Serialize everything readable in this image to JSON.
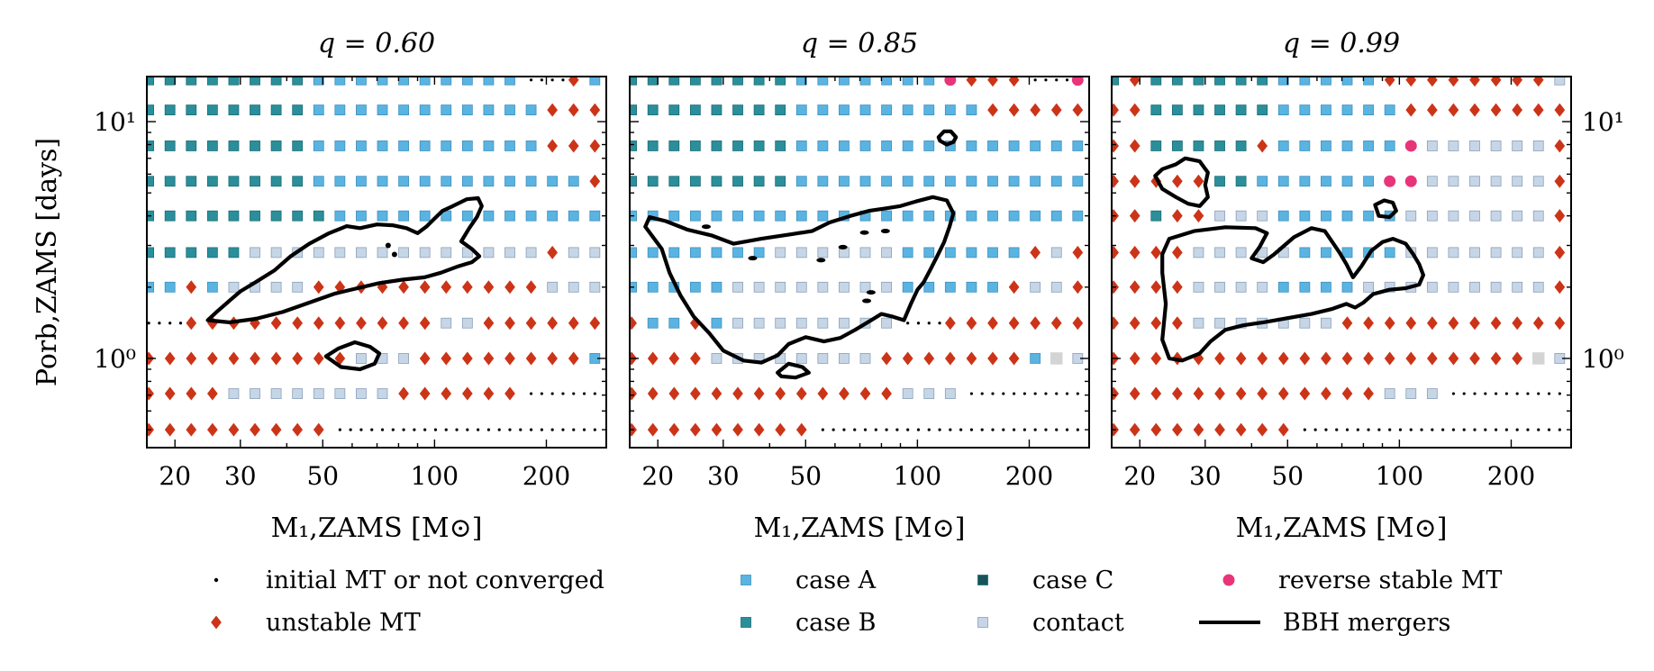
{
  "chart_data": {
    "type": "scatter",
    "colors": {
      "caseA": "#5ab4e1",
      "caseB": "#2a8f9b",
      "caseC": "#17545a",
      "contact": "#c6d6e7",
      "unstable": "#cc3418",
      "reverse": "#e8357a",
      "initial": "#000000",
      "contour": "#000000"
    },
    "xlabel": "M₁,ZAMS [M⊙]",
    "ylabel": "Porb,ZAMS [days]",
    "xlim": [
      16.8,
      290
    ],
    "ylim": [
      0.42,
      15.5
    ],
    "xscale": "log",
    "yscale": "log",
    "xticks": [
      20,
      30,
      50,
      100,
      200
    ],
    "xtick_labels": [
      "20",
      "30",
      "50",
      "100",
      "200"
    ],
    "yticks": [
      1,
      10
    ],
    "ytick_labels": [
      "10⁰",
      "10¹"
    ],
    "legend": {
      "entries": [
        {
          "key": "initial",
          "marker": "dot",
          "label": "initial MT or not converged"
        },
        {
          "key": "unstable",
          "marker": "diamond",
          "label": "unstable MT"
        },
        {
          "key": "caseA",
          "marker": "square",
          "label": "case A"
        },
        {
          "key": "caseB",
          "marker": "square",
          "label": "case B"
        },
        {
          "key": "caseC",
          "marker": "square",
          "label": "case C"
        },
        {
          "key": "contact",
          "marker": "square",
          "label": "contact"
        },
        {
          "key": "reverse",
          "marker": "circle",
          "label": "reverse stable MT"
        },
        {
          "key": "bbh",
          "marker": "line",
          "label": "BBH mergers"
        }
      ]
    },
    "panels": [
      {
        "title": "q = 0.60",
        "rows": [
          {
            "P": 0.5,
            "cells": "UUUUUUUUUIIIIIIIIIIIII"
          },
          {
            "P": 0.71,
            "cells": "UUUUTTTTTTTTUUUUUUIIII"
          },
          {
            "P": 1.0,
            "cells": "UUUUUUUUUUTTTUUUUUUUUA"
          },
          {
            "P": 1.41,
            "cells": "IIUUUUUUUUUUUUTTUUUUUU"
          },
          {
            "P": 2.0,
            "cells": "AAUATTTTUUUUUUUUUUUTTT"
          },
          {
            "P": 2.8,
            "cells": "BBBBBTTTTTTTTTTTTTTUTT"
          },
          {
            "P": 4.0,
            "cells": "BBBBBBBBBAAAAAAAAAAAAA"
          },
          {
            "P": 5.6,
            "cells": "BBBBBBBBAAAAAAAAAAAAAU"
          },
          {
            "P": 7.9,
            "cells": "BBBBBBBBAAAAAAAAAAAUUU"
          },
          {
            "P": 11.2,
            "cells": "BBBBBBBBAAAAAAAAAAAUUU"
          },
          {
            "P": 15.0,
            "cells": "BBBBBBBBAAAAAAAAAAIIUA"
          }
        ],
        "bbh_contours": [
          [
            [
              24.5,
              1.45
            ],
            [
              26,
              1.58
            ],
            [
              28,
              1.75
            ],
            [
              30,
              1.92
            ],
            [
              33,
              2.1
            ],
            [
              37,
              2.35
            ],
            [
              41,
              2.7
            ],
            [
              46,
              3.05
            ],
            [
              52,
              3.38
            ],
            [
              58,
              3.62
            ],
            [
              63,
              3.55
            ],
            [
              70,
              3.68
            ],
            [
              77,
              3.65
            ],
            [
              84,
              3.55
            ],
            [
              90,
              3.38
            ],
            [
              95,
              3.6
            ],
            [
              100,
              3.9
            ],
            [
              105,
              4.2
            ],
            [
              112,
              4.4
            ],
            [
              122,
              4.7
            ],
            [
              131,
              4.75
            ],
            [
              134,
              4.4
            ],
            [
              130,
              3.95
            ],
            [
              124,
              3.55
            ],
            [
              118,
              3.12
            ],
            [
              126,
              2.9
            ],
            [
              132,
              2.7
            ],
            [
              126,
              2.55
            ],
            [
              116,
              2.45
            ],
            [
              104,
              2.3
            ],
            [
              94,
              2.2
            ],
            [
              82,
              2.15
            ],
            [
              71,
              2.08
            ],
            [
              62,
              1.98
            ],
            [
              54,
              1.88
            ],
            [
              46,
              1.72
            ],
            [
              39,
              1.57
            ],
            [
              33,
              1.47
            ],
            [
              28,
              1.42
            ],
            [
              24.5,
              1.45
            ]
          ],
          [
            [
              51,
              1.02
            ],
            [
              55,
              1.1
            ],
            [
              61,
              1.17
            ],
            [
              67,
              1.12
            ],
            [
              71,
              1.05
            ],
            [
              69,
              0.95
            ],
            [
              63,
              0.9
            ],
            [
              56,
              0.92
            ],
            [
              51,
              1.02
            ]
          ]
        ]
      },
      {
        "title": "q = 0.85",
        "rows": [
          {
            "P": 0.5,
            "cells": "UUUUUUUUUIIIIIIIIIIIII"
          },
          {
            "P": 0.71,
            "cells": "UUUUUUUUUUUUUTTTIIIIII"
          },
          {
            "P": 1.0,
            "cells": "UUUUTTTTTTTTUUUUUUUAGT"
          },
          {
            "P": 1.41,
            "cells": "UAAUATTTTTTTTIIUUUUUUU"
          },
          {
            "P": 2.0,
            "cells": "AAAAATTTTTTTTAAAAAUTTU"
          },
          {
            "P": 2.8,
            "cells": "AAAAAAATTTTTTAAAAAAUTU"
          },
          {
            "P": 4.0,
            "cells": "AAAAAAAAAAAAAAAAAAAAAA"
          },
          {
            "P": 5.6,
            "cells": "BBBBBBBBAAAAAAAAAAAAAA"
          },
          {
            "P": 7.9,
            "cells": "BBBBBBBBAAAAAAAAAAAAAA"
          },
          {
            "P": 11.2,
            "cells": "BBBBBBBBAAAAAAAAAUUUUU"
          },
          {
            "P": 15.0,
            "cells": "BBBBBBBBAAAAAAAPUUUIIP"
          }
        ],
        "bbh_contours": [
          [
            [
              19,
              3.95
            ],
            [
              18.5,
              3.6
            ],
            [
              20.5,
              2.9
            ],
            [
              21.5,
              2.3
            ],
            [
              23,
              1.85
            ],
            [
              25,
              1.5
            ],
            [
              27.5,
              1.28
            ],
            [
              30,
              1.08
            ],
            [
              34,
              0.98
            ],
            [
              38,
              0.96
            ],
            [
              42,
              1.03
            ],
            [
              45,
              1.15
            ],
            [
              50,
              1.23
            ],
            [
              56,
              1.18
            ],
            [
              62,
              1.22
            ],
            [
              68,
              1.32
            ],
            [
              74,
              1.43
            ],
            [
              80,
              1.54
            ],
            [
              86,
              1.5
            ],
            [
              92,
              1.45
            ],
            [
              96,
              1.7
            ],
            [
              100,
              1.95
            ],
            [
              104,
              2.1
            ],
            [
              108,
              2.35
            ],
            [
              113,
              2.7
            ],
            [
              118,
              3.1
            ],
            [
              122,
              3.6
            ],
            [
              125,
              4.1
            ],
            [
              120,
              4.65
            ],
            [
              110,
              4.8
            ],
            [
              99,
              4.6
            ],
            [
              90,
              4.4
            ],
            [
              82,
              4.3
            ],
            [
              74,
              4.2
            ],
            [
              66,
              4.0
            ],
            [
              58,
              3.75
            ],
            [
              52,
              3.45
            ],
            [
              46,
              3.35
            ],
            [
              38,
              3.2
            ],
            [
              32,
              3.05
            ],
            [
              28,
              3.3
            ],
            [
              24,
              3.5
            ],
            [
              21,
              3.8
            ],
            [
              19,
              3.95
            ]
          ],
          [
            [
              114,
              8.6
            ],
            [
              118,
              9.1
            ],
            [
              123,
              9.1
            ],
            [
              127,
              8.6
            ],
            [
              125,
              8.2
            ],
            [
              120,
              8.0
            ],
            [
              115,
              8.3
            ],
            [
              114,
              8.6
            ]
          ],
          [
            [
              42,
              0.87
            ],
            [
              45,
              0.95
            ],
            [
              49,
              0.92
            ],
            [
              51,
              0.87
            ],
            [
              47,
              0.83
            ],
            [
              43,
              0.84
            ],
            [
              42,
              0.87
            ]
          ]
        ]
      },
      {
        "title": "q = 0.99",
        "rows": [
          {
            "P": 0.5,
            "cells": "UUUUUUUUUIIIIIIIIIIIII"
          },
          {
            "P": 0.71,
            "cells": "UUUUUUUUUUUUUTTTIIIIII"
          },
          {
            "P": 1.0,
            "cells": "UUUUUUUUUUUUUUUUUUUUGT"
          },
          {
            "P": 1.41,
            "cells": "UUUUTTTTTTTUUUUUUUUUUU"
          },
          {
            "P": 2.0,
            "cells": "UUUUTTTTAAAATTTTTTTTTU"
          },
          {
            "P": 2.8,
            "cells": "UUUUTTTTTAAAAATTTTTTTU"
          },
          {
            "P": 4.0,
            "cells": "UUBUUTTTAAAAAATTTTTTTU"
          },
          {
            "P": 5.6,
            "cells": "UUUUUBBAAAAAAPPTTTTTTU"
          },
          {
            "P": 7.9,
            "cells": "UUBBBBBUAAAAAAPTTTTTTU"
          },
          {
            "P": 11.2,
            "cells": "UUBBBBBBAAAAAAUUUUUUUU"
          },
          {
            "P": 15.0,
            "cells": "BUBBBBBBAAAAAUUUUUUUUT"
          }
        ],
        "bbh_contours": [
          [
            [
              25,
              6.6
            ],
            [
              26.5,
              7.0
            ],
            [
              29,
              6.8
            ],
            [
              30.5,
              6.1
            ],
            [
              30,
              5.4
            ],
            [
              30.5,
              4.8
            ],
            [
              29,
              4.4
            ],
            [
              27,
              4.5
            ],
            [
              25,
              4.8
            ],
            [
              23,
              5.2
            ],
            [
              22,
              5.9
            ],
            [
              23,
              6.3
            ],
            [
              25,
              6.6
            ]
          ],
          [
            [
              24,
              3.2
            ],
            [
              28,
              3.45
            ],
            [
              34,
              3.58
            ],
            [
              41,
              3.55
            ],
            [
              44,
              3.38
            ],
            [
              42,
              2.95
            ],
            [
              40,
              2.65
            ],
            [
              43,
              2.55
            ],
            [
              46,
              2.75
            ],
            [
              52,
              3.25
            ],
            [
              58,
              3.55
            ],
            [
              63,
              3.45
            ],
            [
              66,
              3.1
            ],
            [
              69,
              2.8
            ],
            [
              72,
              2.5
            ],
            [
              75,
              2.2
            ],
            [
              79,
              2.45
            ],
            [
              84,
              2.85
            ],
            [
              90,
              3.1
            ],
            [
              96,
              3.2
            ],
            [
              104,
              3.05
            ],
            [
              109,
              2.75
            ],
            [
              113,
              2.5
            ],
            [
              116,
              2.25
            ],
            [
              113,
              2.05
            ],
            [
              104,
              1.98
            ],
            [
              94,
              1.95
            ],
            [
              85,
              1.87
            ],
            [
              80,
              1.72
            ],
            [
              76,
              1.64
            ],
            [
              72,
              1.7
            ],
            [
              66,
              1.62
            ],
            [
              58,
              1.54
            ],
            [
              50,
              1.48
            ],
            [
              43,
              1.42
            ],
            [
              38,
              1.38
            ],
            [
              34,
              1.32
            ],
            [
              31,
              1.18
            ],
            [
              29,
              1.05
            ],
            [
              26,
              0.98
            ],
            [
              24,
              1.0
            ],
            [
              23,
              1.2
            ],
            [
              23.5,
              1.7
            ],
            [
              23,
              2.3
            ],
            [
              23,
              2.75
            ],
            [
              24,
              3.2
            ]
          ],
          [
            [
              86,
              4.45
            ],
            [
              91,
              4.65
            ],
            [
              96,
              4.55
            ],
            [
              98,
              4.2
            ],
            [
              94,
              3.95
            ],
            [
              88,
              4.0
            ],
            [
              86,
              4.45
            ]
          ]
        ]
      }
    ]
  }
}
